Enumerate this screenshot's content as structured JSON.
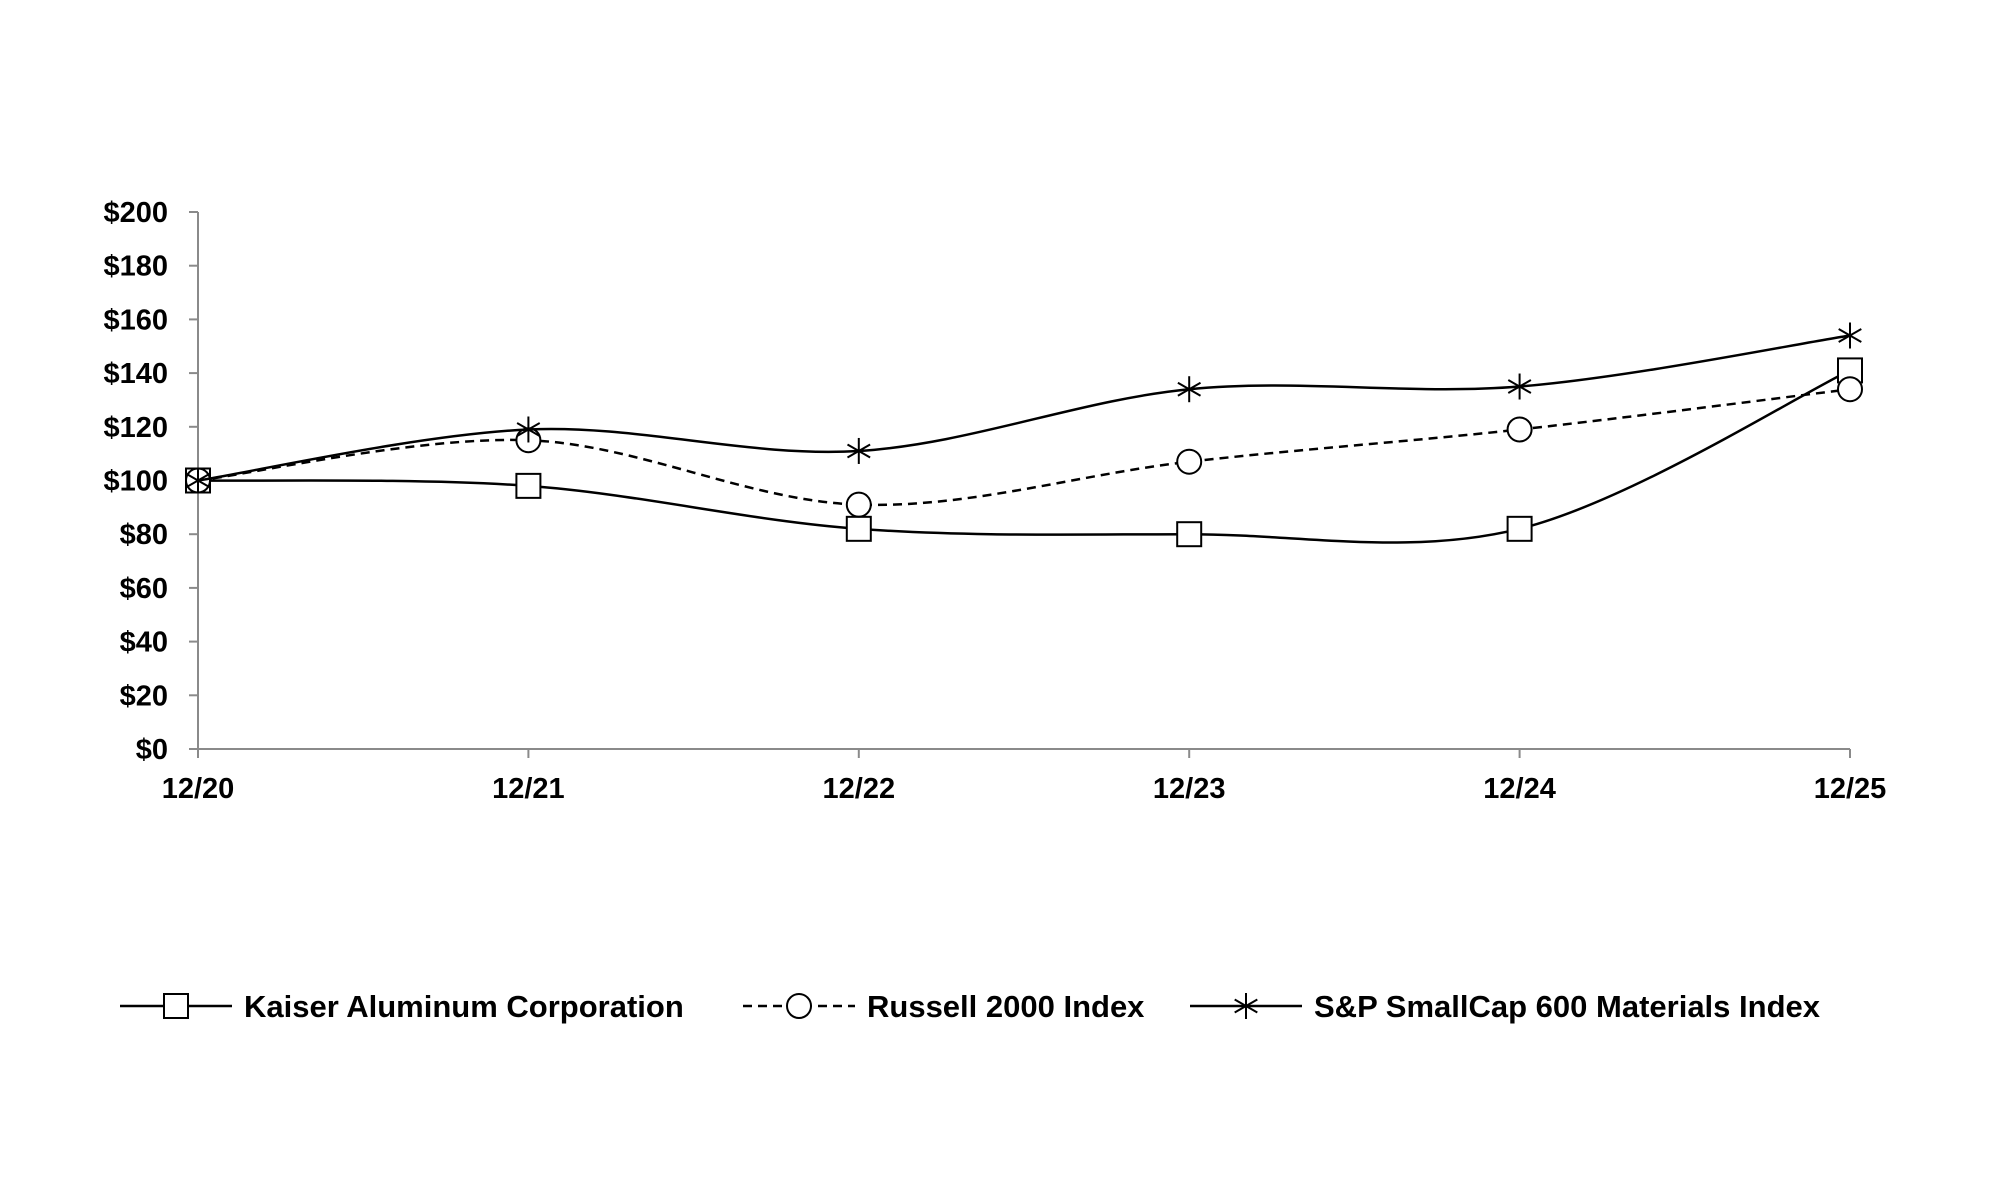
{
  "chart_data": {
    "type": "line",
    "title": "",
    "xlabel": "",
    "ylabel": "",
    "categories": [
      "12/20",
      "12/21",
      "12/22",
      "12/23",
      "12/24",
      "12/25"
    ],
    "y_ticks": [
      "$0",
      "$20",
      "$40",
      "$60",
      "$80",
      "$100",
      "$120",
      "$140",
      "$160",
      "$180",
      "$200"
    ],
    "ylim": [
      0,
      200
    ],
    "grid": false,
    "legend_position": "bottom",
    "series": [
      {
        "name": "Kaiser Aluminum Corporation",
        "values": [
          100,
          98,
          82,
          80,
          82,
          141
        ],
        "marker": "square",
        "line_style": "solid",
        "color": "#000000"
      },
      {
        "name": "Russell 2000 Index",
        "values": [
          100,
          115,
          91,
          107,
          119,
          134
        ],
        "marker": "circle",
        "line_style": "dashed",
        "color": "#000000"
      },
      {
        "name": "S&P SmallCap 600 Materials Index",
        "values": [
          100,
          119,
          111,
          134,
          135,
          154
        ],
        "marker": "asterisk",
        "line_style": "solid",
        "color": "#000000"
      }
    ]
  }
}
